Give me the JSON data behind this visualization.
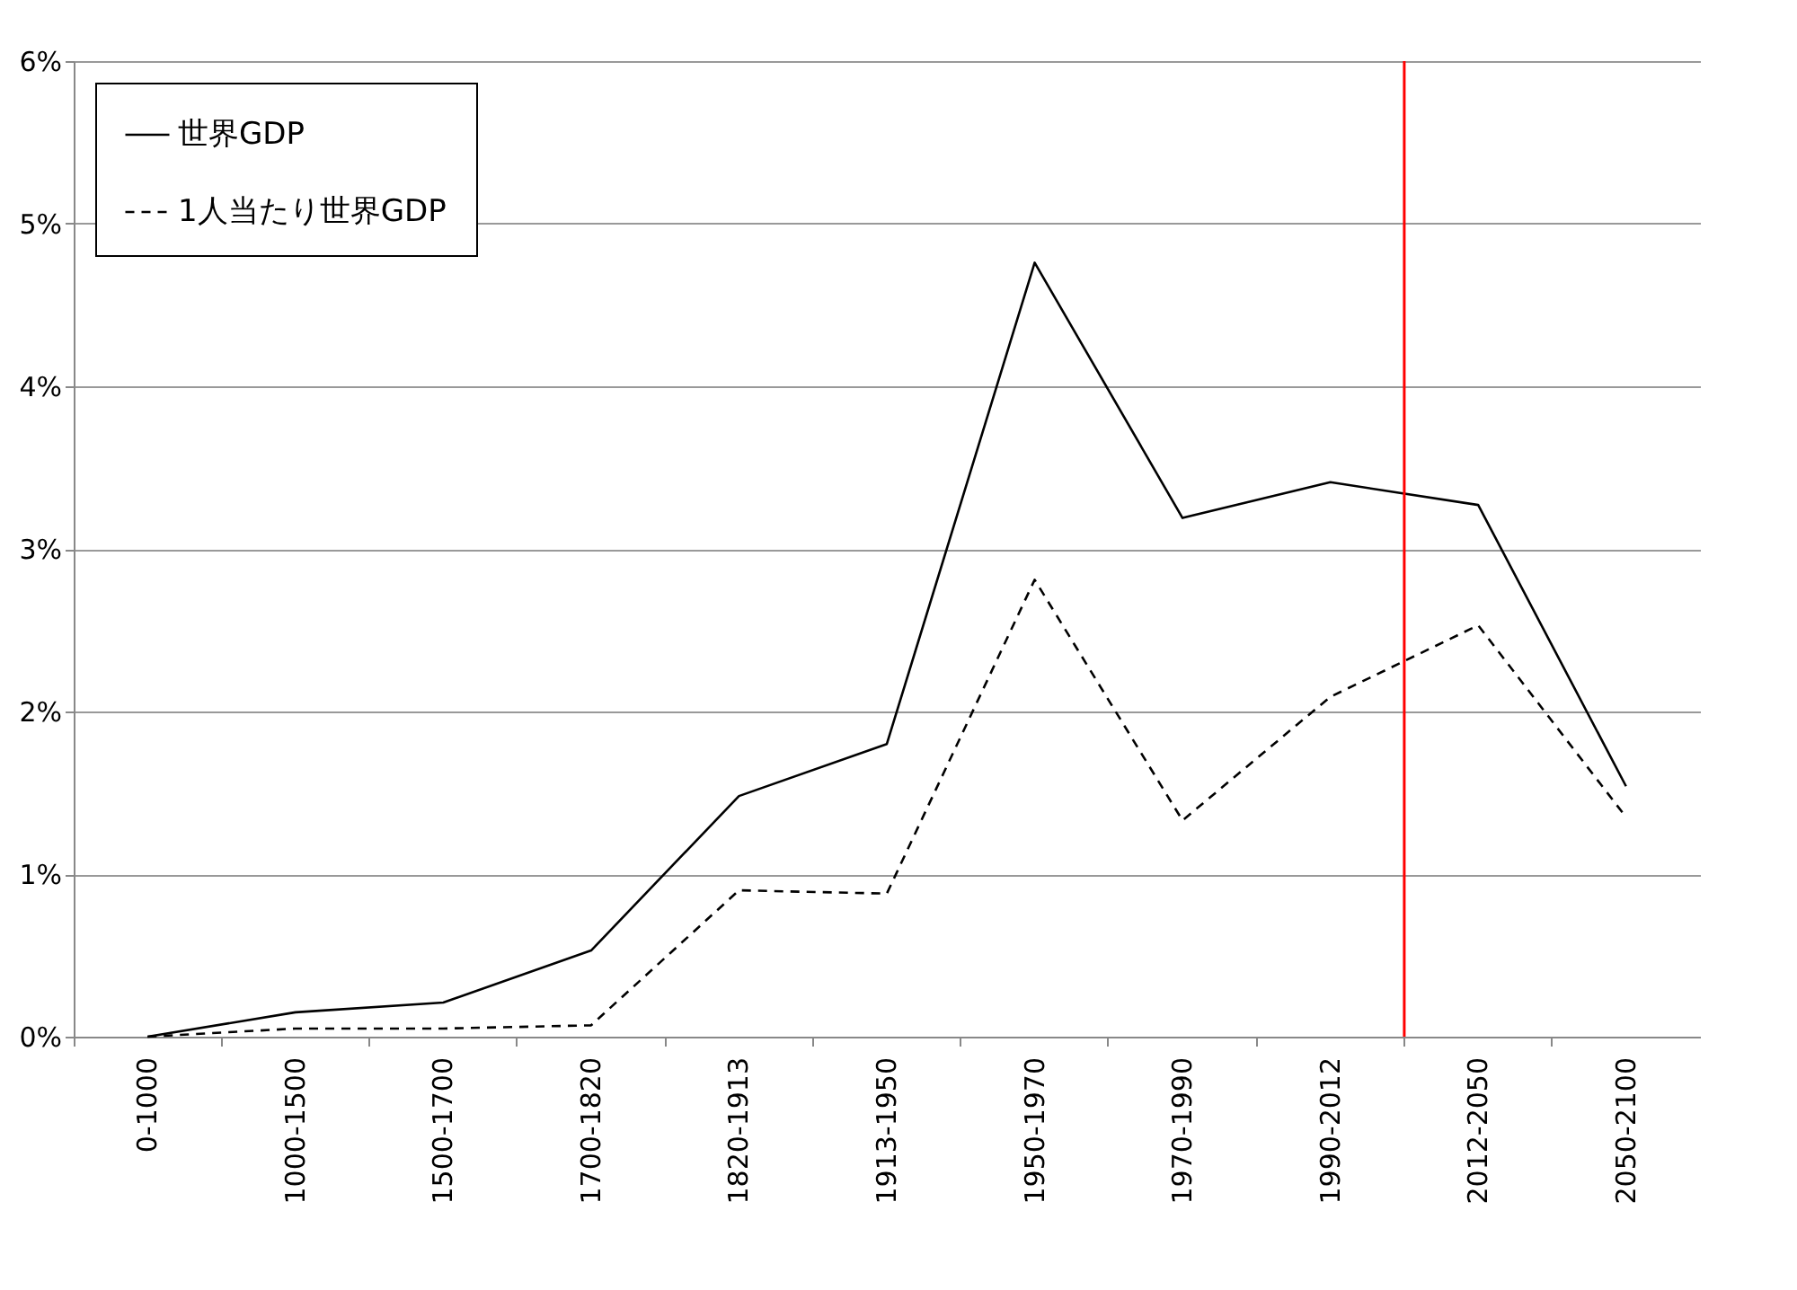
{
  "chart_data": {
    "type": "line",
    "categories": [
      "0-1000",
      "1000-1500",
      "1500-1700",
      "1700-1820",
      "1820-1913",
      "1913-1950",
      "1950-1970",
      "1970-1990",
      "1990-2012",
      "2012-2050",
      "2050-2100"
    ],
    "series": [
      {
        "name": "世界GDP",
        "color": "#000000",
        "line_style": "solid",
        "values": [
          0,
          0.15,
          0.21,
          0.53,
          1.48,
          1.8,
          4.76,
          3.19,
          3.41,
          3.27,
          1.54
        ]
      },
      {
        "name": "1人当たり世界GDP",
        "color": "#000000",
        "line_style": "dashed",
        "values": [
          0,
          0.05,
          0.05,
          0.07,
          0.9,
          0.88,
          2.81,
          1.33,
          2.09,
          2.53,
          1.35
        ]
      }
    ],
    "ylim": [
      0,
      6
    ],
    "yticks": [
      {
        "value": 0,
        "label": "0%"
      },
      {
        "value": 1,
        "label": "1%"
      },
      {
        "value": 2,
        "label": "2%"
      },
      {
        "value": 3,
        "label": "3%"
      },
      {
        "value": 4,
        "label": "4%"
      },
      {
        "value": 5,
        "label": "5%"
      },
      {
        "value": 6,
        "label": "6%"
      }
    ],
    "grid": "y",
    "legend": "top left",
    "marker": "none",
    "ref_lines": [
      {
        "axis": "x",
        "value": "2012-2050",
        "color": "#ff0000"
      }
    ]
  }
}
